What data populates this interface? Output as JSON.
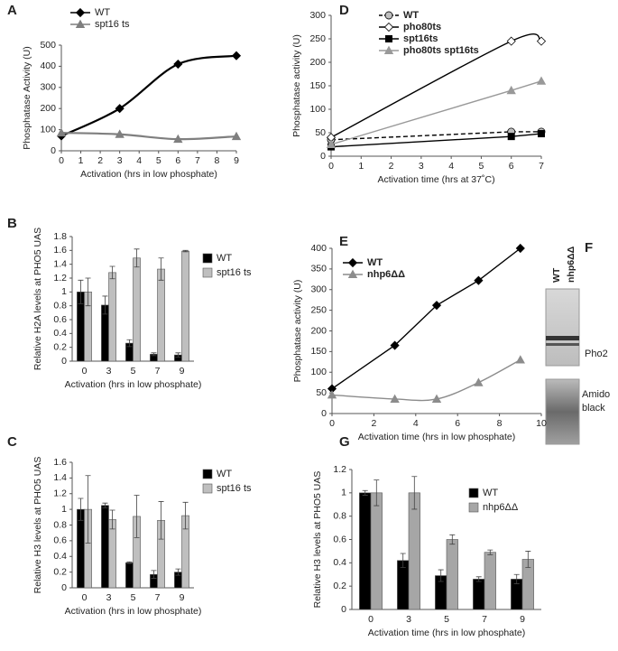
{
  "chart_data": [
    {
      "panel": "A",
      "type": "line",
      "ylabel": "Phosphatase Activity (U)",
      "xlabel": "Activation (hrs in low phosphate)",
      "x": [
        0,
        3,
        6,
        9
      ],
      "xlim": [
        0,
        9
      ],
      "xticks": [
        0,
        1,
        2,
        3,
        4,
        5,
        6,
        7,
        8,
        9
      ],
      "ylim": [
        0,
        500
      ],
      "yticks": [
        0,
        100,
        200,
        300,
        400,
        500
      ],
      "grid": false,
      "legend": "upper left",
      "series": [
        {
          "name": "WT",
          "color": "#000000",
          "marker": "diamond",
          "smooth": true,
          "values": [
            70,
            200,
            410,
            450
          ]
        },
        {
          "name": "spt16 ts",
          "color": "#7f7f7f",
          "marker": "triangle",
          "smooth": true,
          "values": [
            85,
            78,
            55,
            68
          ]
        }
      ]
    },
    {
      "panel": "B",
      "type": "bar",
      "ylabel": "Relative H2A levels at PHO5 UAS",
      "xlabel": "Activation (hrs in low phosphate)",
      "categories": [
        "0",
        "3",
        "5",
        "7",
        "9"
      ],
      "ylim": [
        0,
        1.8
      ],
      "yticks": [
        0,
        0.2,
        0.4,
        0.6,
        0.8,
        1,
        1.2,
        1.4,
        1.6,
        1.8
      ],
      "grid": false,
      "legend": "right",
      "series": [
        {
          "name": "WT",
          "color": "#000000",
          "values": [
            1.0,
            0.81,
            0.26,
            0.1,
            0.09
          ],
          "errors": [
            0.17,
            0.13,
            0.05,
            0.02,
            0.03
          ]
        },
        {
          "name": "spt16 ts",
          "color": "#bfbfbf",
          "values": [
            1.0,
            1.28,
            1.49,
            1.33,
            1.59
          ],
          "errors": [
            0.2,
            0.09,
            0.13,
            0.16,
            0.01
          ]
        }
      ]
    },
    {
      "panel": "C",
      "type": "bar",
      "ylabel": "Relative H3 levels at PHO5 UAS",
      "xlabel": "Activation (hrs in low phosphate)",
      "categories": [
        "0",
        "3",
        "5",
        "7",
        "9"
      ],
      "ylim": [
        0,
        1.6
      ],
      "yticks": [
        0,
        0.2,
        0.4,
        0.6,
        0.8,
        1,
        1.2,
        1.4,
        1.6
      ],
      "grid": false,
      "legend": "right",
      "series": [
        {
          "name": "WT",
          "color": "#000000",
          "values": [
            1.0,
            1.05,
            0.32,
            0.17,
            0.2
          ],
          "errors": [
            0.14,
            0.03,
            0.01,
            0.05,
            0.04
          ]
        },
        {
          "name": "spt16 ts",
          "color": "#bfbfbf",
          "values": [
            1.0,
            0.87,
            0.91,
            0.86,
            0.92
          ],
          "errors": [
            0.43,
            0.12,
            0.27,
            0.24,
            0.17
          ]
        }
      ]
    },
    {
      "panel": "D",
      "type": "line",
      "ylabel": "Phosphatase activity (U)",
      "xlabel": "Activation time (hrs at 37˚C)",
      "x": [
        0,
        6,
        7
      ],
      "xlim": [
        0,
        7
      ],
      "xticks": [
        0,
        1,
        2,
        3,
        4,
        5,
        6,
        7
      ],
      "ylim": [
        0,
        300
      ],
      "yticks": [
        0,
        50,
        100,
        150,
        200,
        250,
        300
      ],
      "grid": false,
      "legend": "upper left",
      "series": [
        {
          "name": "WT",
          "color": "#000000",
          "marker": "circle",
          "marker_color": "#bfbfbf",
          "dash": true,
          "values": [
            35,
            52,
            52
          ]
        },
        {
          "name": "pho80ts",
          "color": "#000000",
          "marker": "diamond",
          "marker_color": "#ffffff",
          "smooth": true,
          "values": [
            40,
            245,
            245
          ]
        },
        {
          "name": "spt16ts",
          "color": "#000000",
          "marker": "square",
          "values": [
            20,
            42,
            48
          ]
        },
        {
          "name": "pho80ts spt16ts",
          "color": "#999999",
          "marker": "triangle",
          "values": [
            25,
            140,
            160
          ]
        }
      ]
    },
    {
      "panel": "E",
      "type": "line",
      "ylabel": "Phosphatase activity (U)",
      "xlabel": "Activation time (hrs in low phosphate)",
      "x": [
        0,
        3,
        5,
        7,
        9
      ],
      "xlim": [
        0,
        10
      ],
      "xticks": [
        0,
        2,
        4,
        6,
        8,
        10
      ],
      "ylim": [
        0,
        400
      ],
      "yticks": [
        0,
        50,
        100,
        150,
        200,
        250,
        300,
        350,
        400
      ],
      "grid": false,
      "legend": "upper left",
      "series": [
        {
          "name": "WT",
          "color": "#000000",
          "marker": "diamond",
          "values": [
            60,
            165,
            262,
            322,
            400
          ]
        },
        {
          "name": "nhp6ΔΔ",
          "color": "#8c8c8c",
          "marker": "triangle",
          "smooth": true,
          "values": [
            45,
            35,
            35,
            75,
            130
          ]
        }
      ]
    },
    {
      "panel": "G",
      "type": "bar",
      "ylabel": "Relative H3 levels at PHO5 UAS",
      "xlabel": "Activation time (hrs in low phosphate)",
      "categories": [
        "0",
        "3",
        "5",
        "7",
        "9"
      ],
      "ylim": [
        0,
        1.2
      ],
      "yticks": [
        0,
        0.2,
        0.4,
        0.6,
        0.8,
        1,
        1.2
      ],
      "grid": false,
      "legend": "upper right",
      "series": [
        {
          "name": "WT",
          "color": "#000000",
          "values": [
            1.0,
            0.42,
            0.29,
            0.26,
            0.26
          ],
          "errors": [
            0.02,
            0.06,
            0.05,
            0.02,
            0.04
          ]
        },
        {
          "name": "nhp6ΔΔ",
          "color": "#a6a6a6",
          "values": [
            1.0,
            1.0,
            0.6,
            0.49,
            0.43
          ],
          "errors": [
            0.11,
            0.14,
            0.04,
            0.02,
            0.07
          ]
        }
      ]
    }
  ],
  "blot": {
    "panel": "F",
    "lanes": [
      "WT",
      "nhp6ΔΔ"
    ],
    "labels": [
      "Pho2",
      "Amido black"
    ]
  }
}
